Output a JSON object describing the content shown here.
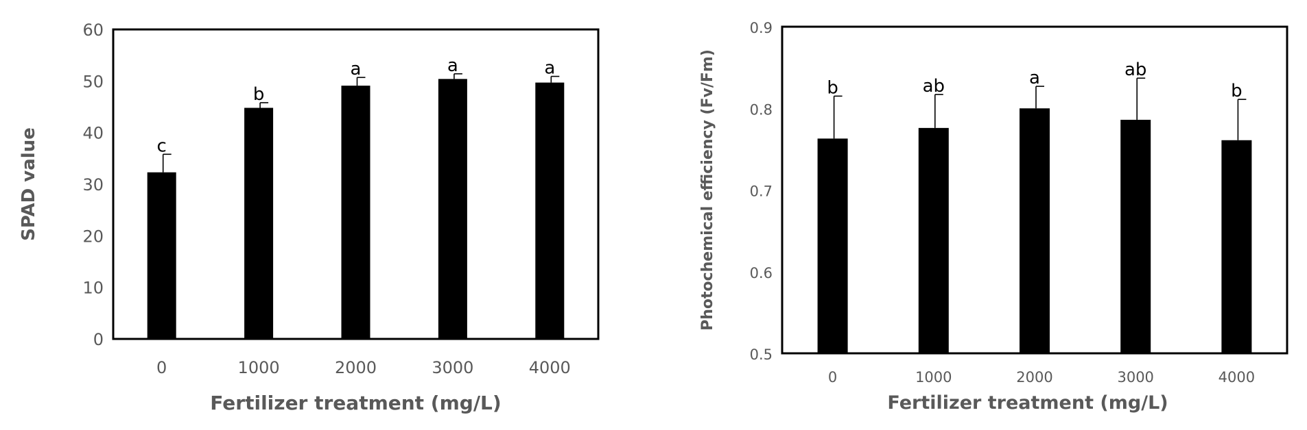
{
  "chart_data": [
    {
      "type": "bar",
      "categories": [
        "0",
        "1000",
        "2000",
        "3000",
        "4000"
      ],
      "values": [
        32.3,
        44.8,
        49.1,
        50.4,
        49.7
      ],
      "error": [
        3.5,
        1.0,
        1.6,
        1.0,
        1.2
      ],
      "significance": [
        "c",
        "b",
        "a",
        "a",
        "a"
      ],
      "xlabel": "Fertilizer treatment  (mg/L)",
      "ylabel": "SPAD value",
      "ylim": [
        0,
        60
      ],
      "yticks": [
        "0",
        "10",
        "20",
        "30",
        "40",
        "50",
        "60"
      ],
      "bar_color": "#000000",
      "grid": false
    },
    {
      "type": "bar",
      "categories": [
        "0",
        "1000",
        "2000",
        "3000",
        "4000"
      ],
      "values": [
        0.763,
        0.776,
        0.8,
        0.786,
        0.761
      ],
      "error": [
        0.052,
        0.041,
        0.027,
        0.051,
        0.05
      ],
      "significance": [
        "b",
        "ab",
        "a",
        "ab",
        "b"
      ],
      "xlabel": "Fertilizer treatment (mg/L)",
      "ylabel": "Photochemical efficiency  (Fv/Fm)",
      "ylim": [
        0.5,
        0.9
      ],
      "yticks": [
        "0.5",
        "0.6",
        "0.7",
        "0.8",
        "0.9"
      ],
      "bar_color": "#000000",
      "grid": false
    }
  ]
}
